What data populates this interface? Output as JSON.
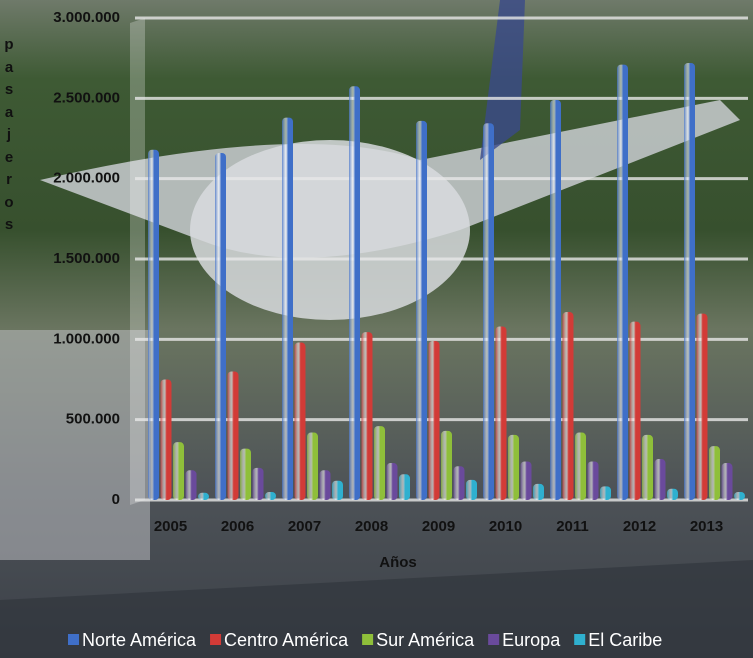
{
  "chart_data": {
    "type": "bar",
    "y_label": "pasajeros",
    "x_label": "Años",
    "categories": [
      "2005",
      "2006",
      "2007",
      "2008",
      "2009",
      "2010",
      "2011",
      "2012",
      "2013"
    ],
    "series": [
      {
        "name": "Norte América",
        "color": "#3f6fc8",
        "values": [
          2180000,
          2160000,
          2380000,
          2575000,
          2360000,
          2345000,
          2490000,
          2710000,
          2720000
        ]
      },
      {
        "name": "Centro América",
        "color": "#d23b37",
        "values": [
          750000,
          800000,
          980000,
          1045000,
          990000,
          1080000,
          1170000,
          1110000,
          1160000
        ]
      },
      {
        "name": "Sur América",
        "color": "#8fbf3a",
        "values": [
          360000,
          320000,
          420000,
          460000,
          430000,
          405000,
          420000,
          405000,
          335000
        ]
      },
      {
        "name": "Europa",
        "color": "#6a4a9c",
        "values": [
          185000,
          200000,
          185000,
          230000,
          210000,
          240000,
          240000,
          255000,
          230000
        ]
      },
      {
        "name": "El Caribe",
        "color": "#2fb0cf",
        "values": [
          45000,
          50000,
          120000,
          160000,
          125000,
          100000,
          85000,
          70000,
          50000
        ]
      }
    ],
    "ylim": [
      0,
      3000000
    ],
    "yticks": [
      0,
      {
        "value": 500000,
        "label": "500.000"
      },
      {
        "value": 1000000,
        "label": "1.000.000"
      },
      {
        "value": 1500000,
        "label": "1.500.000"
      },
      {
        "value": 2000000,
        "label": "2.000.000"
      },
      {
        "value": 2500000,
        "label": "2.500.000"
      },
      {
        "value": 3000000,
        "label": "3.000.000"
      }
    ],
    "grid": true
  }
}
